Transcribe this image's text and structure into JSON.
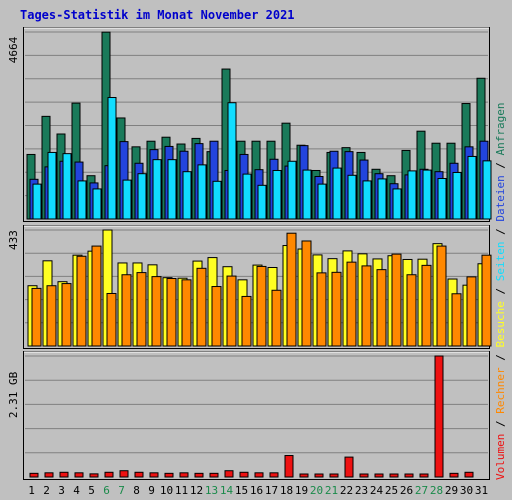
{
  "title": "Tages-Statistik im Monat November 2021",
  "colors": {
    "background": "#c0c0c0",
    "panel": "#c0c0c0",
    "grid": "#808080",
    "title": "#0000cc",
    "anfragen": "#1a7a5a",
    "dateien": "#2244dd",
    "seiten": "#11ddff",
    "besuche": "#ffff22",
    "rechner": "#ff8800",
    "volumen": "#ee1111",
    "weekend_label": "#1a8a4a",
    "weekday_label": "#000000"
  },
  "legend": {
    "anfragen": "Anfragen",
    "dateien": "Dateien",
    "seiten": "Seiten",
    "besuche": "Besuche",
    "rechner": "Rechner",
    "volumen": "Volumen",
    "separator": " / "
  },
  "chart_data": [
    {
      "type": "bar",
      "name": "hits-panel",
      "max_label": "4664",
      "ymax": 4664,
      "categories": [
        "1",
        "2",
        "3",
        "4",
        "5",
        "6",
        "7",
        "8",
        "9",
        "10",
        "11",
        "12",
        "13",
        "14",
        "15",
        "16",
        "17",
        "18",
        "19",
        "20",
        "21",
        "22",
        "23",
        "24",
        "25",
        "26",
        "27",
        "28",
        "29",
        "30",
        "31"
      ],
      "weekend_days": [
        "6",
        "7",
        "13",
        "14",
        "20",
        "21",
        "27",
        "28"
      ],
      "series": [
        {
          "name": "Anfragen",
          "values": [
            1610,
            2560,
            2120,
            2890,
            1080,
            4660,
            2520,
            1800,
            1940,
            2040,
            1870,
            2010,
            1680,
            3740,
            1940,
            1940,
            1940,
            2390,
            1840,
            1210,
            1660,
            1780,
            1660,
            1240,
            1080,
            1710,
            2190,
            1890,
            1890,
            2880,
            3510
          ]
        },
        {
          "name": "Dateien",
          "values": [
            990,
            1300,
            1440,
            1420,
            900,
            1330,
            1930,
            1390,
            1730,
            1810,
            1690,
            1880,
            1940,
            1210,
            1610,
            1230,
            1490,
            1320,
            1830,
            1060,
            1690,
            1680,
            1470,
            1130,
            880,
            1100,
            1240,
            1180,
            1390,
            1800,
            1940
          ]
        },
        {
          "name": "Seiten",
          "values": [
            870,
            1660,
            1630,
            950,
            750,
            3030,
            970,
            1130,
            1480,
            1480,
            1180,
            1350,
            940,
            2900,
            1120,
            840,
            1210,
            1440,
            1220,
            870,
            1270,
            1090,
            950,
            1000,
            750,
            1200,
            1220,
            1010,
            1160,
            1560,
            1450
          ]
        }
      ]
    },
    {
      "type": "bar",
      "name": "visits-panel",
      "max_label": "433",
      "ymax": 433,
      "categories": [
        "1",
        "2",
        "3",
        "4",
        "5",
        "6",
        "7",
        "8",
        "9",
        "10",
        "11",
        "12",
        "13",
        "14",
        "15",
        "16",
        "17",
        "18",
        "19",
        "20",
        "21",
        "22",
        "23",
        "24",
        "25",
        "26",
        "27",
        "28",
        "29",
        "30",
        "31"
      ],
      "series": [
        {
          "name": "Besuche",
          "values": [
            225,
            318,
            240,
            339,
            354,
            433,
            310,
            310,
            303,
            255,
            253,
            317,
            330,
            296,
            247,
            302,
            293,
            375,
            362,
            340,
            326,
            355,
            344,
            325,
            337,
            323,
            324,
            382,
            250,
            227,
            307
          ]
        },
        {
          "name": "Rechner",
          "values": [
            215,
            225,
            233,
            335,
            373,
            196,
            266,
            274,
            259,
            252,
            247,
            290,
            222,
            261,
            185,
            297,
            208,
            421,
            392,
            273,
            275,
            313,
            299,
            285,
            343,
            266,
            301,
            373,
            195,
            258,
            339
          ]
        }
      ]
    },
    {
      "type": "bar",
      "name": "volume-panel",
      "max_label": "2.31 GB",
      "ymax": 2.31,
      "unit": "GB",
      "categories": [
        "1",
        "2",
        "3",
        "4",
        "5",
        "6",
        "7",
        "8",
        "9",
        "10",
        "11",
        "12",
        "13",
        "14",
        "15",
        "16",
        "17",
        "18",
        "19",
        "20",
        "21",
        "22",
        "23",
        "24",
        "25",
        "26",
        "27",
        "28",
        "29",
        "30",
        "31"
      ],
      "series": [
        {
          "name": "Volumen",
          "values": [
            0.07,
            0.08,
            0.09,
            0.08,
            0.06,
            0.09,
            0.12,
            0.09,
            0.08,
            0.07,
            0.08,
            0.07,
            0.07,
            0.12,
            0.09,
            0.08,
            0.08,
            0.41,
            0.04,
            0.02,
            0.04,
            0.38,
            0.03,
            0.03,
            0.03,
            0.03,
            0.03,
            2.31,
            0.07,
            0.09,
            0.0
          ]
        }
      ]
    }
  ]
}
